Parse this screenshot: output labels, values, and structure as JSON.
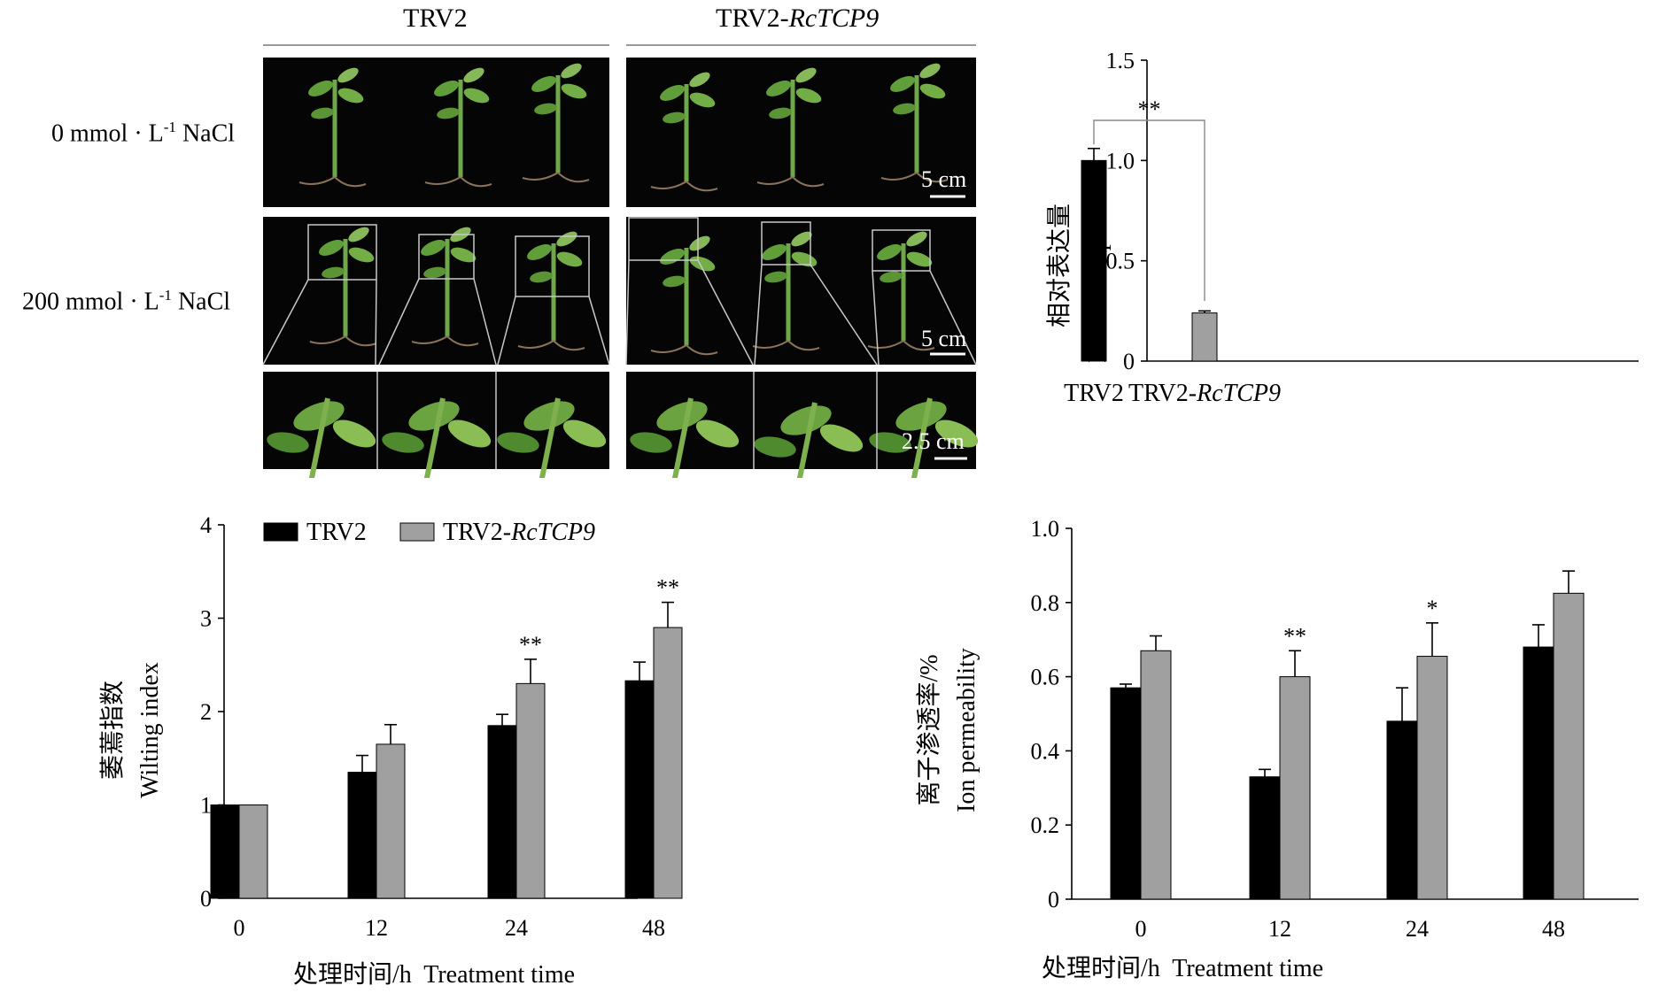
{
  "photo_panel": {
    "groups": [
      {
        "label": "TRV2",
        "italic_part": ""
      },
      {
        "label": "TRV2-",
        "italic_part": "RcTCP9"
      }
    ],
    "rows": [
      {
        "prefix": "0 mmol · L",
        "sup": "-1",
        "suffix": " NaCl"
      },
      {
        "prefix": "200 mmol · L",
        "sup": "-1",
        "suffix": " NaCl"
      }
    ],
    "scale_bars": [
      "5 cm",
      "5 cm",
      "2.5 cm"
    ]
  },
  "colors": {
    "trv2": "#000000",
    "rctcp9": "#a0a0a0",
    "axis": "#000000",
    "photo_bg": "#050505",
    "plant": "#6aa33f"
  },
  "chart_data": [
    {
      "type": "bar",
      "ylabel_cn": "相对表达量",
      "ylabel_en": "Relative expression",
      "categories": [
        "TRV2",
        "TRV2-RcTCP9"
      ],
      "category_parts": [
        {
          "plain": "TRV2",
          "italic": ""
        },
        {
          "plain": "TRV2-",
          "italic": "RcTCP9"
        }
      ],
      "values": [
        1.0,
        0.24
      ],
      "errors": [
        0.06,
        0.01
      ],
      "ylim": [
        0,
        1.5
      ],
      "yticks": [
        "0",
        "0.5",
        "1.0",
        "1.5"
      ],
      "significance": "**"
    },
    {
      "type": "bar",
      "ylabel_cn": "萎蔫指数",
      "ylabel_en": "Wilting index",
      "xlabel": "处理时间/h  Treatment time",
      "categories": [
        "0",
        "12",
        "24",
        "48"
      ],
      "legend": [
        {
          "plain": "TRV2",
          "italic": ""
        },
        {
          "plain": "TRV2-",
          "italic": "RcTCP9"
        }
      ],
      "legend_position": "top-left",
      "ylim": [
        0,
        4
      ],
      "yticks": [
        "0",
        "1",
        "2",
        "3",
        "4"
      ],
      "series": [
        {
          "name": "TRV2",
          "values": [
            1.0,
            1.35,
            1.85,
            2.33
          ],
          "errors": [
            0,
            0.18,
            0.12,
            0.2
          ]
        },
        {
          "name": "TRV2-RcTCP9",
          "values": [
            1.0,
            1.65,
            2.3,
            2.9
          ],
          "errors": [
            0,
            0.21,
            0.26,
            0.27
          ]
        }
      ],
      "significance": [
        "",
        "",
        "**",
        "**"
      ]
    },
    {
      "type": "bar",
      "ylabel_cn": "离子渗透率/%",
      "ylabel_en": "Ion permeability",
      "xlabel": "处理时间/h  Treatment time",
      "categories": [
        "0",
        "12",
        "24",
        "48"
      ],
      "ylim": [
        0,
        1.0
      ],
      "yticks": [
        "0",
        "0.2",
        "0.4",
        "0.6",
        "0.8",
        "1.0"
      ],
      "series": [
        {
          "name": "TRV2",
          "values": [
            0.57,
            0.33,
            0.48,
            0.68
          ],
          "errors": [
            0.01,
            0.02,
            0.09,
            0.06
          ]
        },
        {
          "name": "TRV2-RcTCP9",
          "values": [
            0.67,
            0.6,
            0.655,
            0.825
          ],
          "errors": [
            0.04,
            0.07,
            0.09,
            0.06
          ]
        }
      ],
      "significance": [
        "",
        "**",
        "*",
        ""
      ]
    }
  ]
}
